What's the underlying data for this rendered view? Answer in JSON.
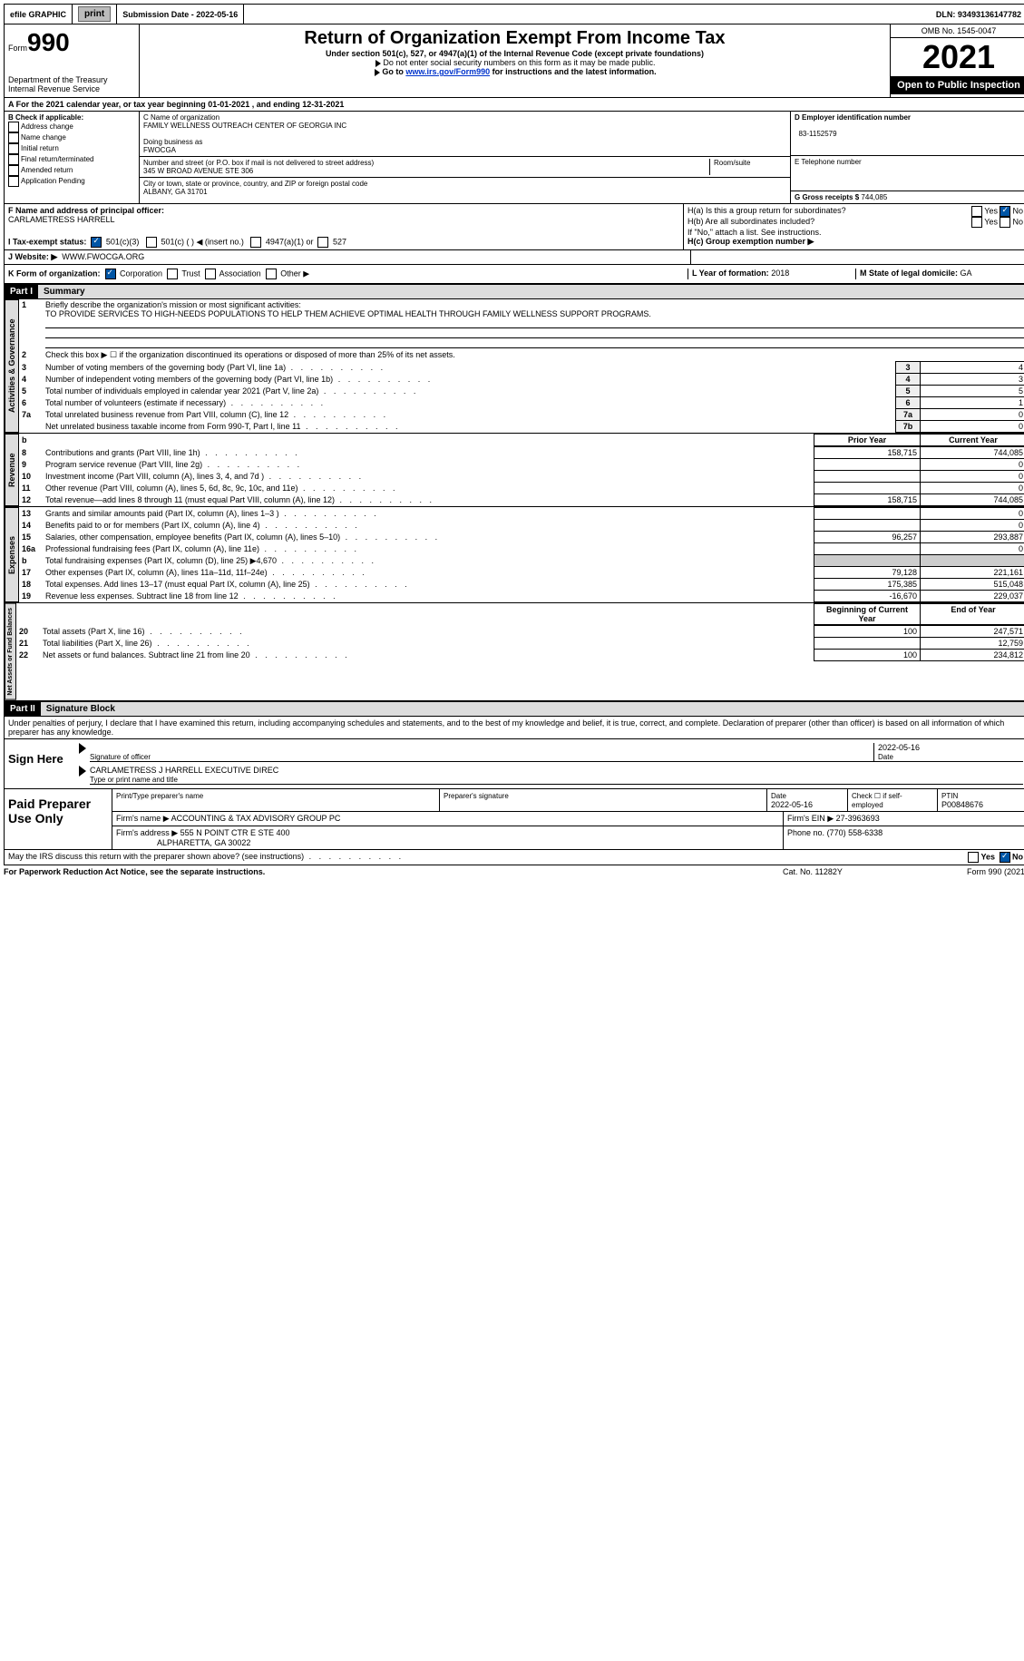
{
  "topbar": {
    "efile": "efile GRAPHIC",
    "print": "print",
    "sub_label": "Submission Date - ",
    "sub_date": "2022-05-16",
    "dln_label": "DLN: ",
    "dln": "93493136147782"
  },
  "header": {
    "form_word": "Form",
    "form_no": "990",
    "dept": "Department of the Treasury",
    "irs": "Internal Revenue Service",
    "title": "Return of Organization Exempt From Income Tax",
    "sub1": "Under section 501(c), 527, or 4947(a)(1) of the Internal Revenue Code (except private foundations)",
    "sub2": "Do not enter social security numbers on this form as it may be made public.",
    "sub3_a": "Go to ",
    "sub3_link": "www.irs.gov/Form990",
    "sub3_b": " for instructions and the latest information.",
    "omb": "OMB No. 1545-0047",
    "year": "2021",
    "open": "Open to Public Inspection"
  },
  "rowA": {
    "text_a": "A For the 2021 calendar year, or tax year beginning ",
    "begin": "01-01-2021",
    "mid": "   , and ending ",
    "end": "12-31-2021"
  },
  "B": {
    "hdr": "B Check if applicable:",
    "items": [
      "Address change",
      "Name change",
      "Initial return",
      "Final return/terminated",
      "Amended return",
      "Application Pending"
    ]
  },
  "C": {
    "name_lbl": "C Name of organization",
    "name": "FAMILY WELLNESS OUTREACH CENTER OF GEORGIA INC",
    "dba_lbl": "Doing business as",
    "dba": "FWOCGA",
    "addr_lbl": "Number and street (or P.O. box if mail is not delivered to street address)",
    "room_lbl": "Room/suite",
    "addr": "345 W BROAD AVENUE STE 306",
    "city_lbl": "City or town, state or province, country, and ZIP or foreign postal code",
    "city": "ALBANY, GA  31701"
  },
  "D": {
    "lbl": "D Employer identification number",
    "val": "83-1152579"
  },
  "E": {
    "lbl": "E Telephone number",
    "val": ""
  },
  "G": {
    "lbl": "G Gross receipts $",
    "val": "744,085"
  },
  "F": {
    "lbl": "F  Name and address of principal officer:",
    "val": "CARLAMETRESS HARRELL"
  },
  "H": {
    "a": "H(a)  Is this a group return for subordinates?",
    "b": "H(b)  Are all subordinates included?",
    "note": "If \"No,\" attach a list. See instructions.",
    "c": "H(c)  Group exemption number ▶",
    "yes": "Yes",
    "no": "No"
  },
  "I": {
    "lbl": "I   Tax-exempt status:",
    "opts": [
      "501(c)(3)",
      "501(c) (  ) ◀ (insert no.)",
      "4947(a)(1) or",
      "527"
    ]
  },
  "J": {
    "lbl": "J   Website: ▶",
    "val": "WWW.FWOCGA.ORG"
  },
  "K": {
    "lbl": "K Form of organization:",
    "opts": [
      "Corporation",
      "Trust",
      "Association",
      "Other ▶"
    ]
  },
  "L": {
    "lbl": "L Year of formation:",
    "val": "2018"
  },
  "M": {
    "lbl": "M State of legal domicile:",
    "val": "GA"
  },
  "part1": {
    "hdr": "Part I",
    "title": "Summary"
  },
  "tabs": {
    "ag": "Activities & Governance",
    "rev": "Revenue",
    "exp": "Expenses",
    "na": "Net Assets or Fund Balances"
  },
  "p1": {
    "l1": "Briefly describe the organization's mission or most significant activities:",
    "l1v": "TO PROVIDE SERVICES TO HIGH-NEEDS POPULATIONS TO HELP THEM ACHIEVE OPTIMAL HEALTH THROUGH FAMILY WELLNESS SUPPORT PROGRAMS.",
    "l2": "Check this box ▶ ☐ if the organization discontinued its operations or disposed of more than 25% of its net assets.",
    "rows": [
      {
        "n": "3",
        "t": "Number of voting members of the governing body (Part VI, line 1a)",
        "b": "3",
        "v": "4"
      },
      {
        "n": "4",
        "t": "Number of independent voting members of the governing body (Part VI, line 1b)",
        "b": "4",
        "v": "3"
      },
      {
        "n": "5",
        "t": "Total number of individuals employed in calendar year 2021 (Part V, line 2a)",
        "b": "5",
        "v": "5"
      },
      {
        "n": "6",
        "t": "Total number of volunteers (estimate if necessary)",
        "b": "6",
        "v": "1"
      },
      {
        "n": "7a",
        "t": "Total unrelated business revenue from Part VIII, column (C), line 12",
        "b": "7a",
        "v": "0"
      },
      {
        "n": "",
        "t": "Net unrelated business taxable income from Form 990-T, Part I, line 11",
        "b": "7b",
        "v": "0"
      }
    ],
    "hdr_prior": "Prior Year",
    "hdr_curr": "Current Year",
    "rev": [
      {
        "n": "8",
        "t": "Contributions and grants (Part VIII, line 1h)",
        "p": "158,715",
        "c": "744,085"
      },
      {
        "n": "9",
        "t": "Program service revenue (Part VIII, line 2g)",
        "p": "",
        "c": "0"
      },
      {
        "n": "10",
        "t": "Investment income (Part VIII, column (A), lines 3, 4, and 7d )",
        "p": "",
        "c": "0"
      },
      {
        "n": "11",
        "t": "Other revenue (Part VIII, column (A), lines 5, 6d, 8c, 9c, 10c, and 11e)",
        "p": "",
        "c": "0"
      },
      {
        "n": "12",
        "t": "Total revenue—add lines 8 through 11 (must equal Part VIII, column (A), line 12)",
        "p": "158,715",
        "c": "744,085"
      }
    ],
    "exp": [
      {
        "n": "13",
        "t": "Grants and similar amounts paid (Part IX, column (A), lines 1–3 )",
        "p": "",
        "c": "0"
      },
      {
        "n": "14",
        "t": "Benefits paid to or for members (Part IX, column (A), line 4)",
        "p": "",
        "c": "0"
      },
      {
        "n": "15",
        "t": "Salaries, other compensation, employee benefits (Part IX, column (A), lines 5–10)",
        "p": "96,257",
        "c": "293,887"
      },
      {
        "n": "16a",
        "t": "Professional fundraising fees (Part IX, column (A), line 11e)",
        "p": "",
        "c": "0"
      },
      {
        "n": "b",
        "t": "Total fundraising expenses (Part IX, column (D), line 25) ▶4,670",
        "p": "shade",
        "c": "shade"
      },
      {
        "n": "17",
        "t": "Other expenses (Part IX, column (A), lines 11a–11d, 11f–24e)",
        "p": "79,128",
        "c": "221,161"
      },
      {
        "n": "18",
        "t": "Total expenses. Add lines 13–17 (must equal Part IX, column (A), line 25)",
        "p": "175,385",
        "c": "515,048"
      },
      {
        "n": "19",
        "t": "Revenue less expenses. Subtract line 18 from line 12",
        "p": "-16,670",
        "c": "229,037"
      }
    ],
    "hdr_beg": "Beginning of Current Year",
    "hdr_end": "End of Year",
    "na": [
      {
        "n": "20",
        "t": "Total assets (Part X, line 16)",
        "p": "100",
        "c": "247,571"
      },
      {
        "n": "21",
        "t": "Total liabilities (Part X, line 26)",
        "p": "",
        "c": "12,759"
      },
      {
        "n": "22",
        "t": "Net assets or fund balances. Subtract line 21 from line 20",
        "p": "100",
        "c": "234,812"
      }
    ]
  },
  "part2": {
    "hdr": "Part II",
    "title": "Signature Block",
    "decl": "Under penalties of perjury, I declare that I have examined this return, including accompanying schedules and statements, and to the best of my knowledge and belief, it is true, correct, and complete. Declaration of preparer (other than officer) is based on all information of which preparer has any knowledge.",
    "sign": "Sign Here",
    "sig_lbl": "Signature of officer",
    "date_lbl": "Date",
    "sig_date": "2022-05-16",
    "name_line": "CARLAMETRESS J HARRELL  EXECUTIVE DIREC",
    "name_lbl": "Type or print name and title",
    "paid": "Paid Preparer Use Only",
    "pp_name_lbl": "Print/Type preparer's name",
    "pp_sig_lbl": "Preparer's signature",
    "pp_date_lbl": "Date",
    "pp_date": "2022-05-16",
    "pp_self": "Check ☐ if self-employed",
    "ptin_lbl": "PTIN",
    "ptin": "P00848676",
    "firm_name_lbl": "Firm's name   ▶",
    "firm_name": "ACCOUNTING & TAX ADVISORY GROUP PC",
    "firm_ein_lbl": "Firm's EIN ▶",
    "firm_ein": "27-3963693",
    "firm_addr_lbl": "Firm's address ▶",
    "firm_addr1": "555 N POINT CTR E STE 400",
    "firm_addr2": "ALPHARETTA, GA  30022",
    "phone_lbl": "Phone no.",
    "phone": "(770) 558-6338",
    "discuss": "May the IRS discuss this return with the preparer shown above? (see instructions)",
    "yes": "Yes",
    "no": "No"
  },
  "footer": {
    "l": "For Paperwork Reduction Act Notice, see the separate instructions.",
    "c": "Cat. No. 11282Y",
    "r": "Form 990 (2021)"
  }
}
